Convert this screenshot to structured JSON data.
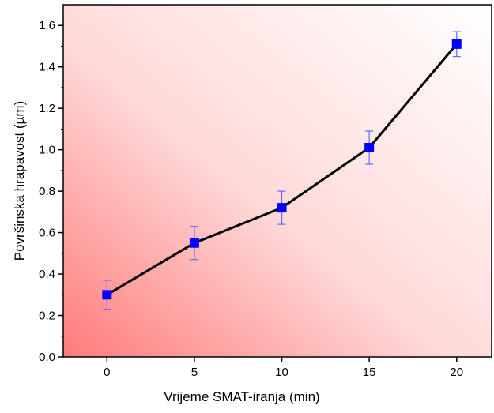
{
  "chart_data": {
    "type": "line",
    "title": "",
    "xlabel": "Vrijeme SMAT-iranja (min)",
    "ylabel": "Površinska hrapavost (µm)",
    "xlim": [
      -2.5,
      22
    ],
    "ylim": [
      0,
      1.7
    ],
    "xticks": [
      0,
      5,
      10,
      15,
      20
    ],
    "xtick_labels": [
      "0",
      "5",
      "10",
      "15",
      "20"
    ],
    "yticks": [
      0.0,
      0.2,
      0.4,
      0.6,
      0.8,
      1.0,
      1.2,
      1.4,
      1.6
    ],
    "ytick_labels": [
      "0.0",
      "0.2",
      "0.4",
      "0.6",
      "0.8",
      "1.0",
      "1.2",
      "1.4",
      "1.6"
    ],
    "grid": false,
    "series": [
      {
        "x": [
          0,
          5,
          10,
          15,
          20
        ],
        "y": [
          0.3,
          0.55,
          0.72,
          1.01,
          1.51
        ],
        "yerr": [
          0.07,
          0.08,
          0.08,
          0.08,
          0.06
        ],
        "line_color": "#000000",
        "marker": "square",
        "marker_color": "#0000ff",
        "errorbar_color": "#6666ff"
      }
    ],
    "background_gradient": {
      "from": "#ff7b7b",
      "to": "#ffffff",
      "direction": "bottom-left to top-right"
    }
  }
}
